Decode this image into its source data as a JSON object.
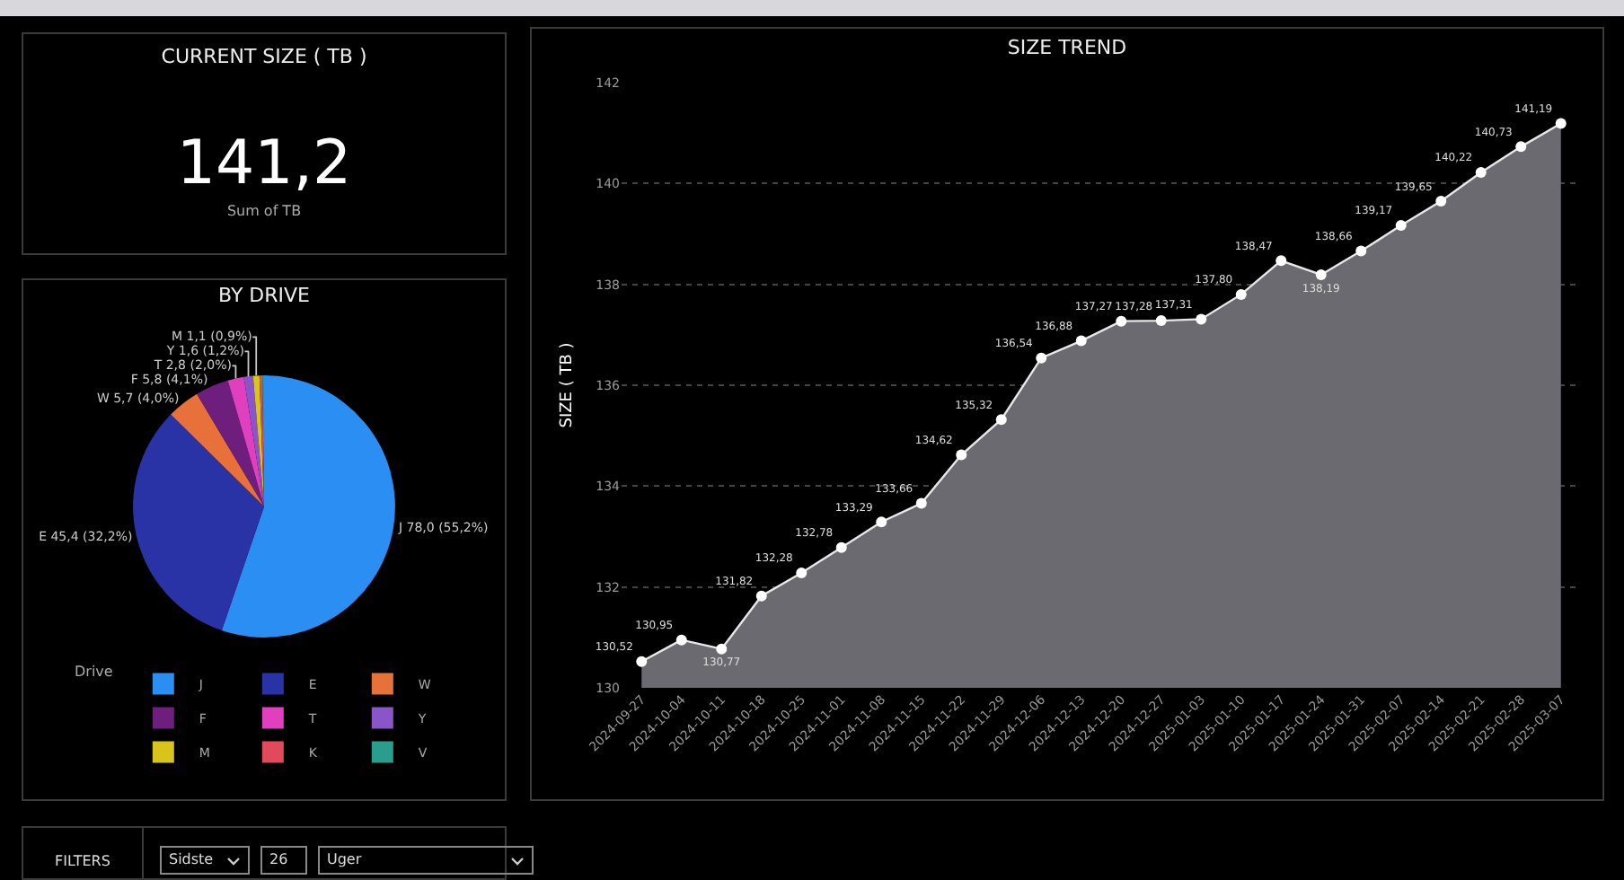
{
  "chart_data": [
    {
      "type": "other",
      "title": "CURRENT SIZE ( TB )",
      "value_labels": [
        "141,2"
      ],
      "annotations": [
        "Sum of TB"
      ]
    },
    {
      "type": "area",
      "title": "SIZE TREND",
      "ylabel": "SIZE ( TB )",
      "categories": [
        "2024-09-27",
        "2024-10-04",
        "2024-10-11",
        "2024-10-18",
        "2024-10-25",
        "2024-11-01",
        "2024-11-08",
        "2024-11-15",
        "2024-11-22",
        "2024-11-29",
        "2024-12-06",
        "2024-12-13",
        "2024-12-20",
        "2024-12-27",
        "2025-01-03",
        "2025-01-10",
        "2025-01-17",
        "2025-01-24",
        "2025-01-31",
        "2025-02-07",
        "2025-02-14",
        "2025-02-21",
        "2025-02-28",
        "2025-03-07"
      ],
      "series": [
        {
          "color": "#6b6a70",
          "values": [
            130.52,
            130.95,
            130.77,
            131.82,
            132.28,
            132.78,
            133.29,
            133.66,
            134.62,
            135.32,
            136.54,
            136.88,
            137.27,
            137.28,
            137.31,
            137.8,
            138.47,
            138.19,
            138.66,
            139.17,
            139.65,
            140.22,
            140.73,
            141.19
          ],
          "value_labels": [
            "130,52",
            "130,95",
            "130,77",
            "131,82",
            "132,28",
            "132,78",
            "133,29",
            "133,66",
            "134,62",
            "135,32",
            "136,54",
            "136,88",
            "137,27",
            "137,28",
            "137,31",
            "137,80",
            "138,47",
            "138,19",
            "138,66",
            "139,17",
            "139,65",
            "140,22",
            "140,73",
            "141,19"
          ]
        }
      ],
      "ylim": [
        130,
        142
      ],
      "yticks": [
        130,
        132,
        134,
        136,
        138,
        140,
        142
      ],
      "grid": "y",
      "marker": "circle",
      "legend": false
    },
    {
      "type": "pie",
      "title": "BY DRIVE",
      "legend_title": "Drive",
      "legend": "bottom",
      "categories": [
        "J",
        "E",
        "W",
        "F",
        "T",
        "Y",
        "M",
        "K",
        "V"
      ],
      "values": [
        78.0,
        45.4,
        5.7,
        5.8,
        2.8,
        1.6,
        1.1,
        0.5,
        0.3
      ],
      "colors": [
        "#2b8ef2",
        "#2a33a6",
        "#e8703a",
        "#6e1f7e",
        "#e040c0",
        "#8a55c8",
        "#d8c41a",
        "#e04a5a",
        "#2a9d8f"
      ],
      "value_labels": [
        "J 78,0 (55,2%)",
        "E 45,4 (32,2%)",
        "W 5,7 (4,0%)",
        "F 5,8 (4,1%)",
        "T 2,8 (2,0%)",
        "Y 1,6 (1,2%)",
        "M 1,1 (0,9%)",
        null,
        null
      ]
    },
    {
      "type": "other",
      "title": "FILTERS",
      "annotations": [
        "Sidste",
        "26",
        "Uger"
      ]
    }
  ]
}
